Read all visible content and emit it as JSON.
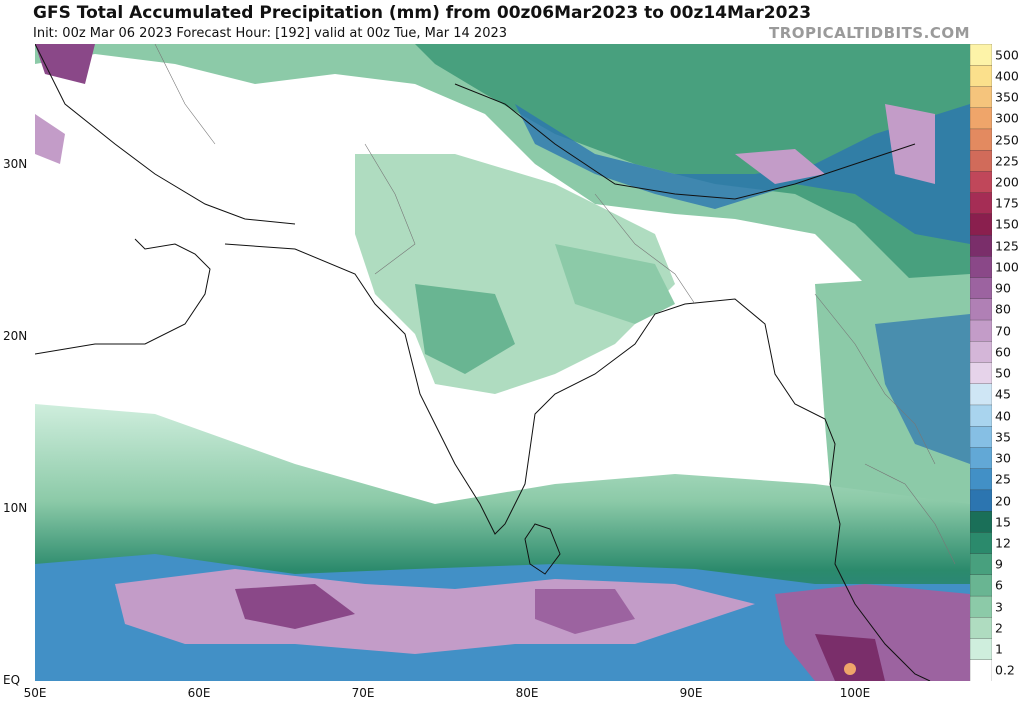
{
  "header": {
    "title": "GFS Total Accumulated Precipitation (mm) from 00z06Mar2023 to 00z14Mar2023",
    "subtitle": "Init: 00z Mar 06 2023   Forecast Hour: [192]   valid at 00z Tue, Mar 14 2023",
    "brand": "TROPICALTIDBITS.COM"
  },
  "axes": {
    "lat_labels": [
      "30N",
      "20N",
      "10N",
      "EQ"
    ],
    "lon_labels": [
      "50E",
      "60E",
      "70E",
      "80E",
      "90E",
      "100E"
    ]
  },
  "colorbar": {
    "labels": [
      "500",
      "400",
      "350",
      "300",
      "250",
      "225",
      "200",
      "175",
      "150",
      "125",
      "100",
      "90",
      "80",
      "70",
      "60",
      "50",
      "45",
      "40",
      "35",
      "30",
      "25",
      "20",
      "15",
      "12",
      "9",
      "6",
      "3",
      "2",
      "1",
      "0.2"
    ],
    "colors": [
      "#fdf3a8",
      "#fbe08c",
      "#f5c47c",
      "#efa56a",
      "#e38a60",
      "#d16b5a",
      "#c0475a",
      "#a52d55",
      "#8a1f4e",
      "#7a2e6a",
      "#8a4888",
      "#9c63a0",
      "#b080b5",
      "#c39cc8",
      "#d4b6d8",
      "#e6d3ea",
      "#cfe6f5",
      "#a9d4ee",
      "#86bfe4",
      "#62a8d6",
      "#4290c6",
      "#2c75b0",
      "#1a6f58",
      "#2b8a6c",
      "#48a07e",
      "#69b592",
      "#8ccaa8",
      "#afdcc0",
      "#cfeedd",
      "#ffffff"
    ]
  }
}
